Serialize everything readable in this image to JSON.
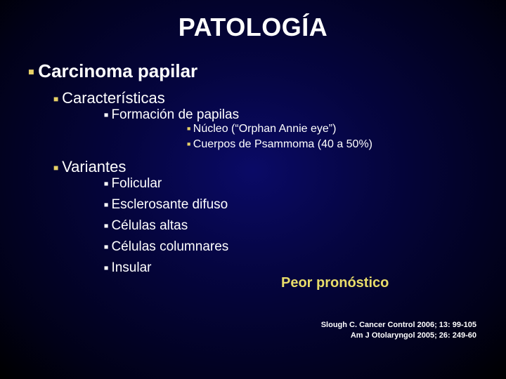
{
  "colors": {
    "background_gradient": [
      "#0a0a66",
      "#050540",
      "#010118",
      "#000000"
    ],
    "title_color": "#ffffff",
    "text_color": "#ffffff",
    "bullet_accent": "#e6d067",
    "callout_color": "#e9dd6a"
  },
  "typography": {
    "title_fontsize": 36,
    "lvl1_fontsize": 26,
    "lvl2_fontsize": 22,
    "lvl3_fontsize": 19,
    "lvl4_fontsize": 16,
    "callout_fontsize": 20,
    "ref_fontsize": 11,
    "font_family": "Arial"
  },
  "title": "PATOLOGÍA",
  "content": {
    "lvl1_a": "Carcinoma papilar",
    "lvl2_a": "Características",
    "lvl3_a": "Formación de papilas",
    "lvl4_a": "Núcleo (“Orphan Annie eye”)",
    "lvl4_b": "Cuerpos de Psammoma  (40 a 50%)",
    "lvl2_b": "Variantes",
    "lvl3_b": "Folicular",
    "lvl3_c": "Esclerosante difuso",
    "lvl3_d": "Células altas",
    "lvl3_e": "Células columnares",
    "lvl3_f": "Insular"
  },
  "callout": "Peor pronóstico",
  "references": {
    "r1": "Slough C. Cancer Control 2006; 13: 99-105",
    "r2": "Am J Otolaryngol 2005; 26: 249-60"
  }
}
